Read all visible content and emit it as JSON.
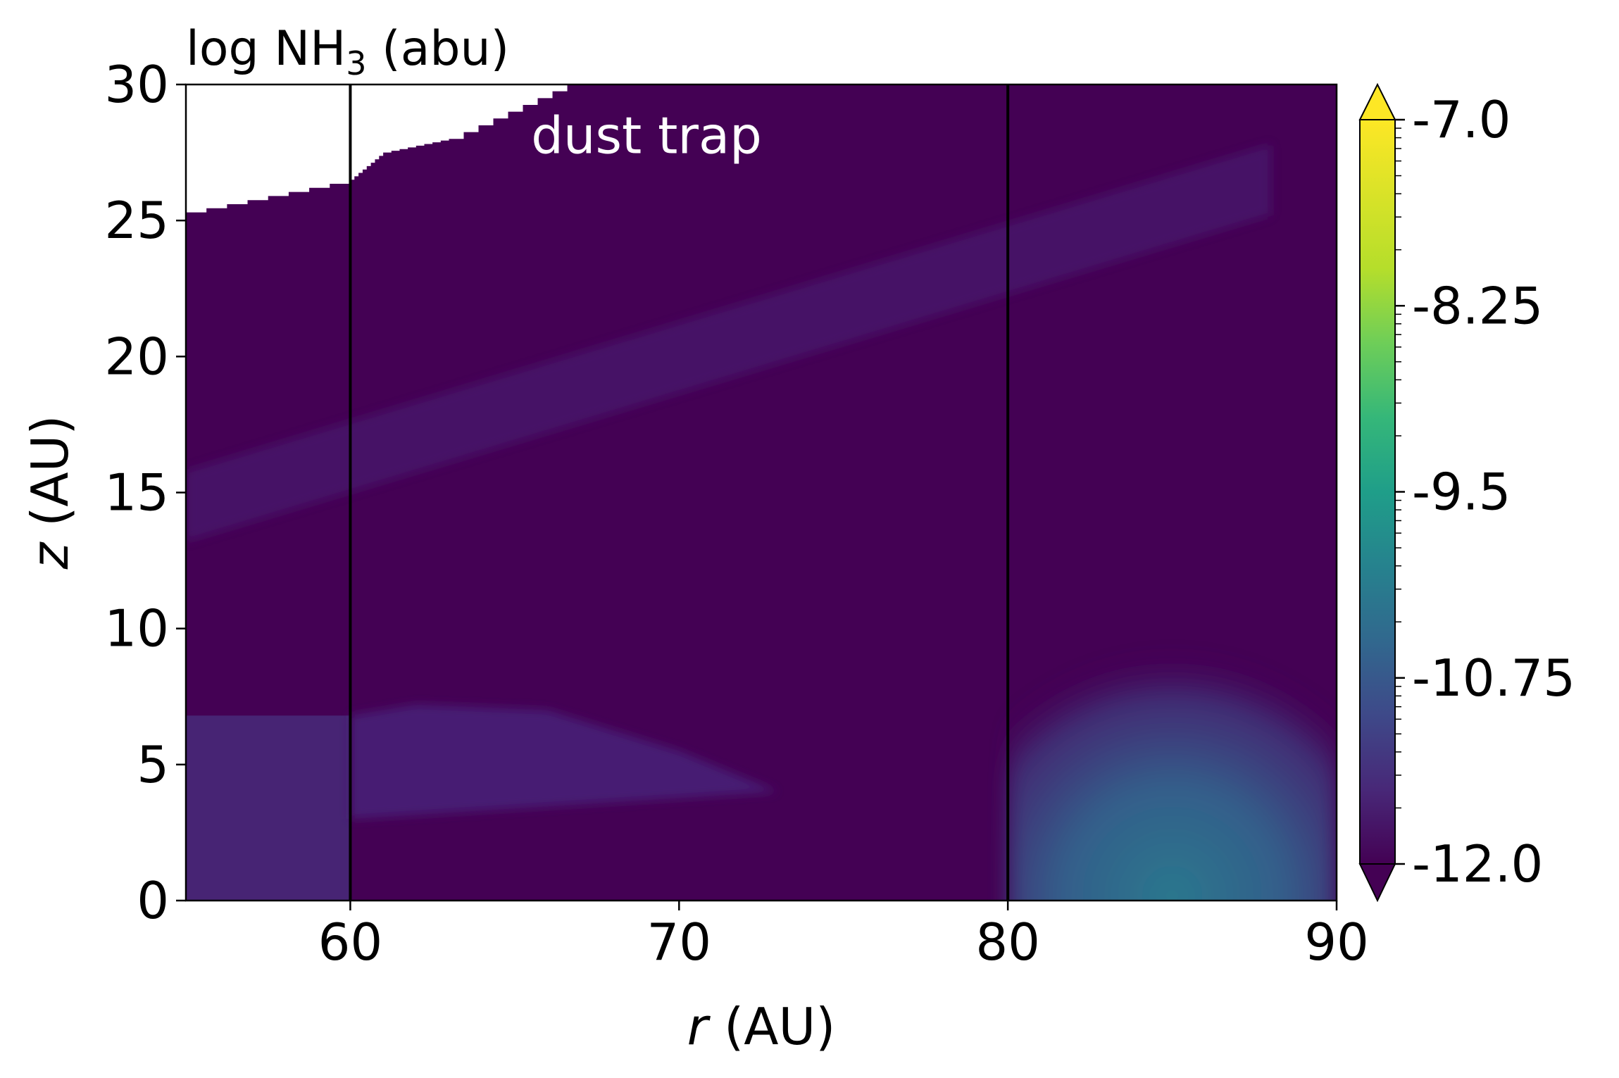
{
  "chart_data": {
    "type": "heatmap",
    "title": "log NH",
    "title_subscript": "3",
    "title_suffix": " (abu)",
    "xlabel_var": "r",
    "xlabel_unit": " (AU)",
    "ylabel_var": "z",
    "ylabel_unit": " (AU)",
    "xlim": [
      55,
      90
    ],
    "ylim": [
      0,
      30
    ],
    "x_ticks": [
      60,
      70,
      80,
      90
    ],
    "y_ticks": [
      0,
      5,
      10,
      15,
      20,
      25,
      30
    ],
    "colorbar": {
      "colormap": "viridis",
      "range": [
        -12.0,
        -7.0
      ],
      "ticks": [
        -7.0,
        -8.25,
        -9.5,
        -10.75,
        -12.0
      ],
      "tick_labels": [
        "-7.0",
        "-8.25",
        "-9.5",
        "-10.75",
        "-12.0"
      ],
      "extend": "both"
    },
    "vertical_lines": [
      60,
      80
    ],
    "annotation": "dust trap",
    "annotation_position": {
      "r": 65.5,
      "z": 28
    },
    "masked_region_boundary": [
      {
        "r": 55.0,
        "z": 25.3
      },
      {
        "r": 60.0,
        "z": 26.5
      },
      {
        "r": 61.0,
        "z": 27.5
      },
      {
        "r": 63.0,
        "z": 28.0
      },
      {
        "r": 66.6,
        "z": 30.0
      }
    ],
    "features": [
      {
        "name": "upper band",
        "r_range": [
          55,
          88
        ],
        "z_start": 14.5,
        "z_end": 26.5,
        "log_abundance": -11.7
      },
      {
        "name": "lower left region",
        "r_range": [
          55,
          60
        ],
        "z_range": [
          0,
          6.8
        ],
        "log_abundance": -11.5
      },
      {
        "name": "trap mid-plane wedge",
        "r_range": [
          60,
          73
        ],
        "z_range": [
          3,
          7
        ],
        "log_abundance": -11.75
      },
      {
        "name": "outer mid-plane",
        "r_range": [
          80,
          90
        ],
        "z_range": [
          0,
          11
        ],
        "log_abundance": -10.2
      }
    ]
  }
}
